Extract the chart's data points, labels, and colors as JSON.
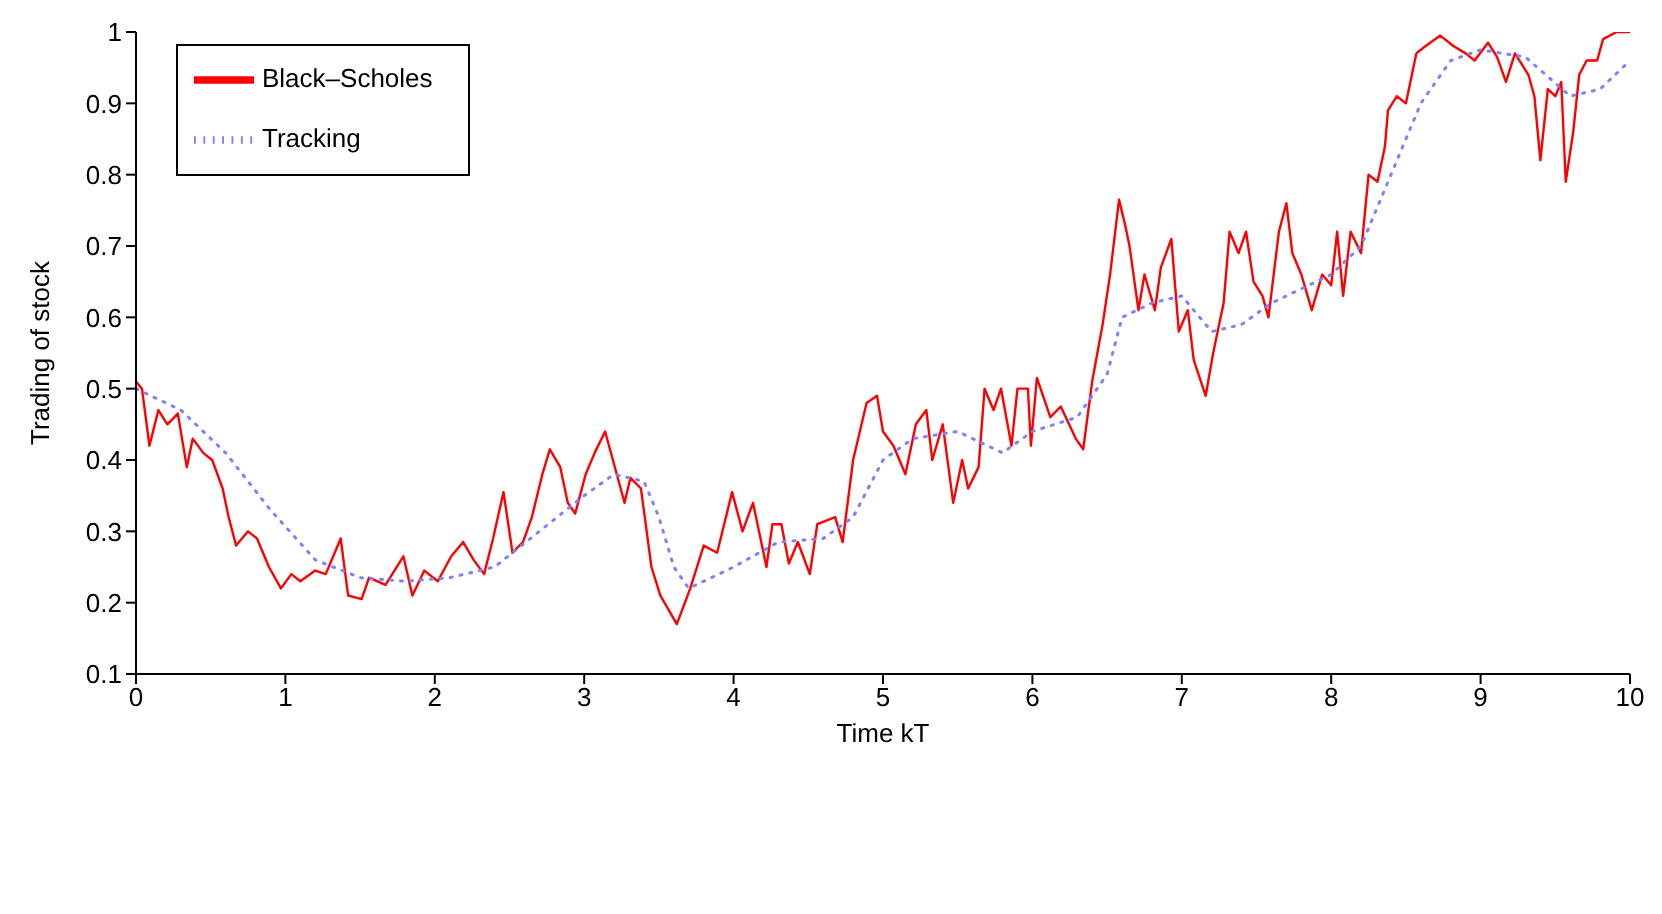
{
  "chart_data": {
    "type": "line",
    "xlabel": "Time kT",
    "ylabel": "Trading of stock",
    "xlim": [
      0,
      10
    ],
    "xticks": [
      0,
      1,
      2,
      3,
      4,
      5,
      6,
      7,
      8,
      9,
      10
    ],
    "ylim": [
      0.1,
      1
    ],
    "yticks": [
      0.1,
      0.2,
      0.3,
      0.4,
      0.5,
      0.6,
      0.7,
      0.8,
      0.9,
      1
    ],
    "grid": false,
    "legend": "top left",
    "marker": "none",
    "series": [
      {
        "name": "Black–Scholes",
        "color": "#ff0000",
        "line_style": "solid",
        "x": [
          0,
          0.04,
          0.09,
          0.15,
          0.21,
          0.28,
          0.34,
          0.38,
          0.45,
          0.51,
          0.58,
          0.62,
          0.67,
          0.75,
          0.81,
          0.89,
          0.97,
          1.04,
          1.1,
          1.2,
          1.27,
          1.37,
          1.42,
          1.51,
          1.56,
          1.67,
          1.79,
          1.85,
          1.93,
          2.02,
          2.11,
          2.19,
          2.26,
          2.33,
          2.39,
          2.46,
          2.52,
          2.59,
          2.65,
          2.72,
          2.77,
          2.84,
          2.89,
          2.94,
          3.01,
          3.07,
          3.14,
          3.27,
          3.31,
          3.38,
          3.45,
          3.51,
          3.62,
          3.71,
          3.8,
          3.89,
          3.99,
          4.06,
          4.13,
          4.22,
          4.26,
          4.32,
          4.37,
          4.43,
          4.51,
          4.56,
          4.68,
          4.73,
          4.8,
          4.89,
          4.96,
          5.0,
          5.07,
          5.15,
          5.22,
          5.29,
          5.33,
          5.4,
          5.47,
          5.53,
          5.57,
          5.64,
          5.68,
          5.74,
          5.79,
          5.86,
          5.9,
          5.97,
          5.99,
          6.03,
          6.12,
          6.19,
          6.29,
          6.34,
          6.4,
          6.47,
          6.52,
          6.58,
          6.62,
          6.65,
          6.71,
          6.75,
          6.82,
          6.86,
          6.93,
          6.98,
          7.04,
          7.08,
          7.16,
          7.21,
          7.28,
          7.32,
          7.38,
          7.43,
          7.48,
          7.54,
          7.58,
          7.65,
          7.7,
          7.74,
          7.8,
          7.87,
          7.94,
          8.0,
          8.04,
          8.08,
          8.13,
          8.2,
          8.25,
          8.31,
          8.36,
          8.38,
          8.44,
          8.5,
          8.57,
          8.63,
          8.73,
          8.82,
          8.9,
          8.96,
          9.05,
          9.11,
          9.17,
          9.23,
          9.32,
          9.36,
          9.4,
          9.45,
          9.5,
          9.54,
          9.57,
          9.62,
          9.66,
          9.71,
          9.78,
          9.82,
          9.91,
          9.97,
          10
        ],
        "values": [
          0.51,
          0.5,
          0.42,
          0.47,
          0.45,
          0.465,
          0.39,
          0.43,
          0.41,
          0.4,
          0.36,
          0.32,
          0.28,
          0.3,
          0.29,
          0.25,
          0.22,
          0.24,
          0.23,
          0.245,
          0.24,
          0.29,
          0.21,
          0.205,
          0.235,
          0.225,
          0.265,
          0.21,
          0.245,
          0.23,
          0.265,
          0.285,
          0.26,
          0.24,
          0.29,
          0.355,
          0.27,
          0.285,
          0.32,
          0.38,
          0.415,
          0.39,
          0.34,
          0.325,
          0.38,
          0.41,
          0.44,
          0.34,
          0.375,
          0.36,
          0.25,
          0.21,
          0.17,
          0.22,
          0.28,
          0.27,
          0.355,
          0.3,
          0.34,
          0.25,
          0.31,
          0.31,
          0.255,
          0.285,
          0.24,
          0.31,
          0.32,
          0.285,
          0.4,
          0.48,
          0.49,
          0.44,
          0.42,
          0.38,
          0.45,
          0.47,
          0.4,
          0.45,
          0.34,
          0.4,
          0.36,
          0.39,
          0.5,
          0.47,
          0.5,
          0.42,
          0.5,
          0.5,
          0.42,
          0.515,
          0.46,
          0.475,
          0.43,
          0.415,
          0.51,
          0.59,
          0.66,
          0.765,
          0.73,
          0.7,
          0.61,
          0.66,
          0.61,
          0.67,
          0.71,
          0.58,
          0.61,
          0.54,
          0.49,
          0.55,
          0.62,
          0.72,
          0.69,
          0.72,
          0.65,
          0.63,
          0.6,
          0.72,
          0.76,
          0.69,
          0.66,
          0.61,
          0.66,
          0.645,
          0.72,
          0.63,
          0.72,
          0.69,
          0.8,
          0.79,
          0.84,
          0.89,
          0.91,
          0.9,
          0.97,
          0.98,
          0.995,
          0.98,
          0.97,
          0.96,
          0.985,
          0.965,
          0.93,
          0.97,
          0.94,
          0.91,
          0.82,
          0.92,
          0.91,
          0.93,
          0.79,
          0.86,
          0.94,
          0.96,
          0.96,
          0.99,
          1,
          1,
          1
        ]
      },
      {
        "name": "Tracking",
        "color": "#7f7fff",
        "line_style": "dotted",
        "x": [
          0,
          0.3,
          0.6,
          0.9,
          1.2,
          1.5,
          1.8,
          2.1,
          2.4,
          2.7,
          3.0,
          3.2,
          3.4,
          3.5,
          3.6,
          3.7,
          4.0,
          4.3,
          4.6,
          4.8,
          5.0,
          5.2,
          5.5,
          5.8,
          6.0,
          6.3,
          6.5,
          6.6,
          6.8,
          7.0,
          7.2,
          7.4,
          7.6,
          7.8,
          8.0,
          8.2,
          8.4,
          8.6,
          8.8,
          9.0,
          9.3,
          9.6,
          9.8,
          10
        ],
        "values": [
          0.5,
          0.47,
          0.41,
          0.33,
          0.26,
          0.235,
          0.23,
          0.235,
          0.25,
          0.3,
          0.35,
          0.38,
          0.37,
          0.32,
          0.25,
          0.22,
          0.25,
          0.285,
          0.29,
          0.32,
          0.4,
          0.43,
          0.44,
          0.41,
          0.44,
          0.46,
          0.52,
          0.6,
          0.62,
          0.63,
          0.58,
          0.59,
          0.62,
          0.64,
          0.66,
          0.7,
          0.8,
          0.9,
          0.96,
          0.975,
          0.965,
          0.91,
          0.92,
          0.96
        ]
      }
    ]
  }
}
